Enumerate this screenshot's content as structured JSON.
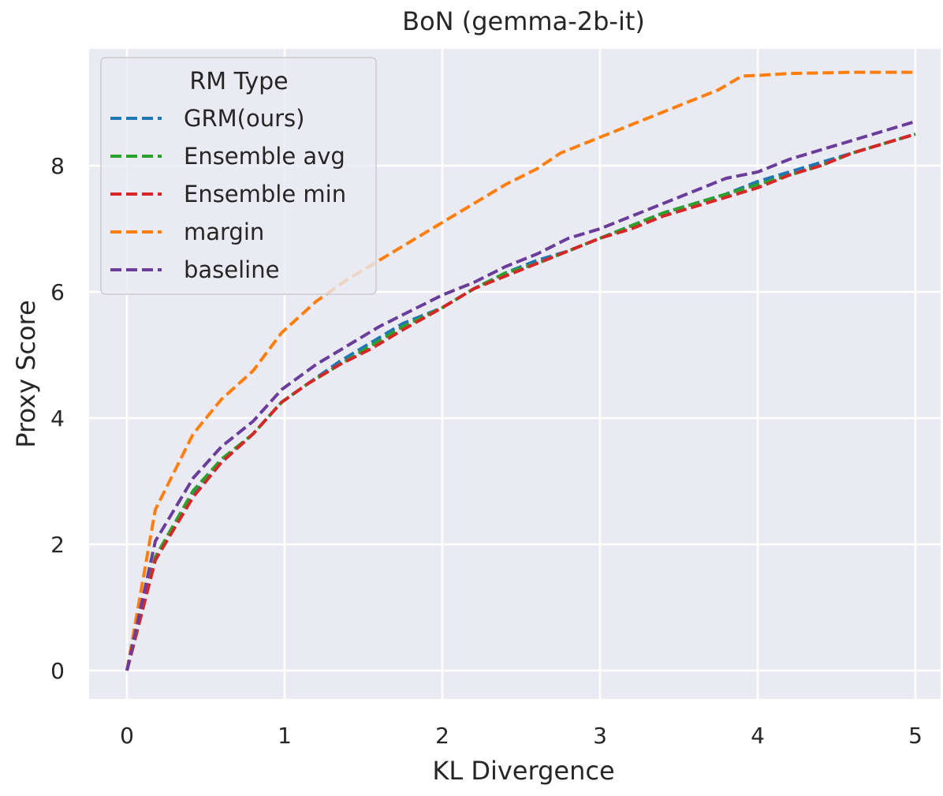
{
  "chart_data": {
    "type": "line",
    "title": "BoN (gemma-2b-it)",
    "xlabel": "KL Divergence",
    "ylabel": "Proxy Score",
    "xlim": [
      -0.24,
      5.16
    ],
    "ylim": [
      -0.45,
      9.85
    ],
    "xticks": [
      0,
      1,
      2,
      3,
      4,
      5
    ],
    "yticks": [
      0,
      2,
      4,
      6,
      8
    ],
    "grid": true,
    "legend": {
      "title": "RM Type",
      "placement": "top-left"
    },
    "line_style": "dashed",
    "series": [
      {
        "name": "GRM(ours)",
        "color": "#1f77b4",
        "x": [
          0,
          0.18,
          0.42,
          0.6,
          0.8,
          0.98,
          1.15,
          1.35,
          1.55,
          1.75,
          2.0,
          2.2,
          2.4,
          2.6,
          2.8,
          3.0,
          3.2,
          3.4,
          3.6,
          3.8,
          4.0,
          4.2,
          4.4,
          4.6,
          4.8,
          5.0
        ],
        "y": [
          0,
          1.75,
          2.8,
          3.3,
          3.75,
          4.25,
          4.55,
          4.9,
          5.2,
          5.5,
          5.75,
          6.05,
          6.3,
          6.5,
          6.65,
          6.85,
          7.05,
          7.25,
          7.4,
          7.55,
          7.75,
          7.9,
          8.05,
          8.2,
          8.35,
          8.5
        ]
      },
      {
        "name": "Ensemble avg",
        "color": "#2ca02c",
        "x": [
          0,
          0.18,
          0.42,
          0.6,
          0.8,
          0.98,
          1.15,
          1.35,
          1.55,
          1.75,
          2.0,
          2.2,
          2.4,
          2.6,
          2.8,
          3.0,
          3.2,
          3.4,
          3.6,
          3.8,
          4.0,
          4.2,
          4.4,
          4.6,
          4.8,
          5.0
        ],
        "y": [
          0,
          1.8,
          2.85,
          3.35,
          3.75,
          4.25,
          4.55,
          4.85,
          5.15,
          5.45,
          5.75,
          6.05,
          6.3,
          6.45,
          6.65,
          6.85,
          7.05,
          7.25,
          7.4,
          7.55,
          7.7,
          7.85,
          8.0,
          8.2,
          8.35,
          8.5
        ]
      },
      {
        "name": "Ensemble min",
        "color": "#d62728",
        "x": [
          0,
          0.18,
          0.42,
          0.6,
          0.8,
          0.98,
          1.15,
          1.35,
          1.55,
          1.75,
          2.0,
          2.2,
          2.4,
          2.6,
          2.8,
          3.0,
          3.2,
          3.4,
          3.6,
          3.8,
          4.0,
          4.2,
          4.4,
          4.6,
          4.8,
          5.0
        ],
        "y": [
          0,
          1.75,
          2.75,
          3.3,
          3.75,
          4.25,
          4.55,
          4.85,
          5.1,
          5.4,
          5.75,
          6.05,
          6.25,
          6.45,
          6.65,
          6.85,
          7.0,
          7.2,
          7.35,
          7.5,
          7.65,
          7.85,
          8.0,
          8.2,
          8.35,
          8.5
        ]
      },
      {
        "name": "margin",
        "color": "#ff7f0e",
        "x": [
          0,
          0.18,
          0.42,
          0.6,
          0.8,
          0.98,
          1.2,
          1.4,
          1.6,
          1.8,
          2.0,
          2.2,
          2.4,
          2.6,
          2.75,
          3.0,
          3.2,
          3.4,
          3.6,
          3.75,
          3.9,
          4.0,
          4.2,
          4.4,
          4.6,
          4.8,
          5.0
        ],
        "y": [
          0,
          2.55,
          3.75,
          4.3,
          4.75,
          5.35,
          5.85,
          6.2,
          6.5,
          6.8,
          7.1,
          7.4,
          7.7,
          7.95,
          8.2,
          8.45,
          8.65,
          8.85,
          9.05,
          9.2,
          9.42,
          9.43,
          9.46,
          9.47,
          9.48,
          9.48,
          9.48
        ]
      },
      {
        "name": "baseline",
        "color": "#6a3d9a",
        "x": [
          0,
          0.18,
          0.42,
          0.6,
          0.8,
          0.98,
          1.2,
          1.4,
          1.6,
          1.8,
          2.0,
          2.2,
          2.4,
          2.6,
          2.8,
          3.0,
          3.2,
          3.4,
          3.6,
          3.8,
          4.0,
          4.2,
          4.4,
          4.6,
          4.8,
          5.0
        ],
        "y": [
          0,
          2.05,
          3.05,
          3.55,
          3.95,
          4.45,
          4.85,
          5.15,
          5.45,
          5.7,
          5.95,
          6.15,
          6.4,
          6.6,
          6.85,
          7.0,
          7.2,
          7.4,
          7.6,
          7.8,
          7.9,
          8.1,
          8.25,
          8.4,
          8.55,
          8.7
        ]
      }
    ]
  }
}
